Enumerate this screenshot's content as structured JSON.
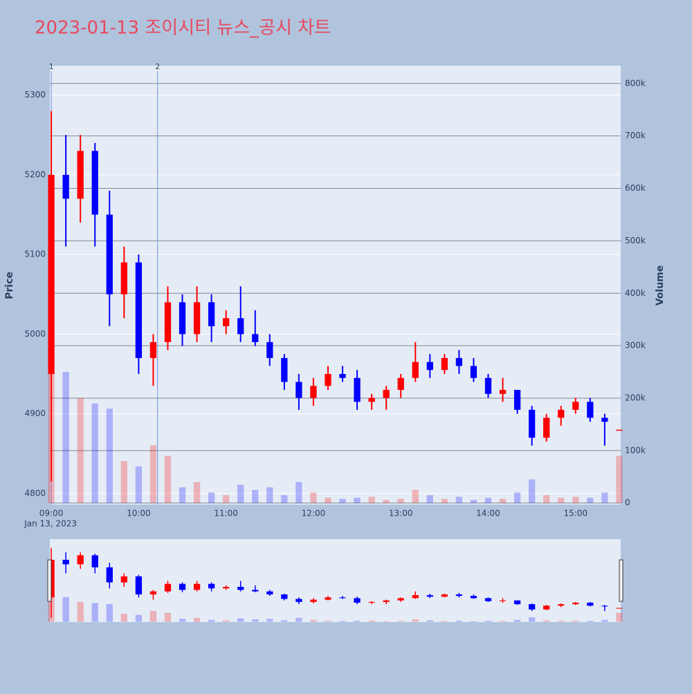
{
  "chart_data": {
    "type": "candlestick",
    "title": "2023-01-13 조이시티 뉴스_공시 차트",
    "x": [
      "09:00",
      "09:10",
      "09:20",
      "09:30",
      "09:40",
      "09:50",
      "10:00",
      "10:10",
      "10:20",
      "10:30",
      "10:40",
      "10:50",
      "11:00",
      "11:10",
      "11:20",
      "11:30",
      "11:40",
      "11:50",
      "12:00",
      "12:10",
      "12:20",
      "12:30",
      "12:40",
      "12:50",
      "13:00",
      "13:10",
      "13:20",
      "13:30",
      "13:40",
      "13:50",
      "14:00",
      "14:10",
      "14:20",
      "14:30",
      "14:40",
      "14:50",
      "15:00",
      "15:10",
      "15:20",
      "15:30"
    ],
    "open": [
      4950,
      5200,
      5170,
      5230,
      5150,
      5050,
      5090,
      4970,
      4990,
      5040,
      5000,
      5040,
      5010,
      5020,
      5000,
      4990,
      4970,
      4940,
      4920,
      4935,
      4950,
      4945,
      4915,
      4920,
      4930,
      4945,
      4965,
      4955,
      4970,
      4960,
      4945,
      4925,
      4930,
      4905,
      4870,
      4895,
      4905,
      4915,
      4895,
      4880
    ],
    "high": [
      5280,
      5250,
      5250,
      5240,
      5180,
      5110,
      5100,
      5000,
      5060,
      5050,
      5060,
      5050,
      5030,
      5060,
      5030,
      5000,
      4975,
      4950,
      4945,
      4960,
      4960,
      4955,
      4925,
      4935,
      4950,
      4990,
      4975,
      4975,
      4980,
      4970,
      4950,
      4945,
      4930,
      4910,
      4900,
      4910,
      4920,
      4920,
      4900,
      4880
    ],
    "low": [
      4815,
      5110,
      5140,
      5110,
      5010,
      5020,
      4950,
      4935,
      4980,
      4985,
      4990,
      4990,
      5000,
      4990,
      4985,
      4960,
      4930,
      4905,
      4910,
      4930,
      4940,
      4905,
      4905,
      4905,
      4920,
      4940,
      4945,
      4950,
      4950,
      4940,
      4920,
      4915,
      4900,
      4860,
      4865,
      4885,
      4900,
      4890,
      4860,
      4880
    ],
    "close": [
      5200,
      5170,
      5230,
      5150,
      5050,
      5090,
      4970,
      4990,
      5040,
      5000,
      5040,
      5010,
      5020,
      5000,
      4990,
      4970,
      4940,
      4920,
      4935,
      4950,
      4945,
      4915,
      4920,
      4930,
      4945,
      4965,
      4955,
      4970,
      4960,
      4945,
      4925,
      4930,
      4905,
      4870,
      4895,
      4905,
      4915,
      4895,
      4890,
      4880
    ],
    "volume": [
      420000,
      250000,
      200000,
      190000,
      180000,
      80000,
      70000,
      110000,
      90000,
      30000,
      40000,
      20000,
      15000,
      35000,
      25000,
      30000,
      15000,
      40000,
      20000,
      10000,
      8000,
      10000,
      12000,
      6000,
      8000,
      25000,
      15000,
      8000,
      12000,
      6000,
      10000,
      8000,
      20000,
      45000,
      15000,
      10000,
      12000,
      10000,
      20000,
      90000
    ],
    "increasing_color": "#ff0000",
    "decreasing_color": "#0000ff",
    "xlim": [
      "08:59",
      "15:31"
    ],
    "xticks": [
      "09:00",
      "10:00",
      "11:00",
      "12:00",
      "13:00",
      "14:00",
      "15:00"
    ],
    "x_date_label": "Jan 13, 2023",
    "ylabel": "Price",
    "ylim": [
      4786,
      5337
    ],
    "yticks": [
      4800,
      4900,
      5000,
      5100,
      5200,
      5300
    ],
    "y2label": "Volume",
    "y2lim": [
      -3000,
      834000
    ],
    "y2ticks": [
      0,
      {
        "value": 100000,
        "label": "100k"
      },
      {
        "value": 200000,
        "label": "200k"
      },
      {
        "value": 300000,
        "label": "300k"
      },
      {
        "value": 400000,
        "label": "400k"
      },
      {
        "value": 500000,
        "label": "500k"
      },
      {
        "value": 600000,
        "label": "600k"
      },
      {
        "value": 700000,
        "label": "700k"
      },
      {
        "value": 800000,
        "label": "800k"
      }
    ],
    "annotations": [
      {
        "x": "09:00",
        "text": "1"
      },
      {
        "x": "10:13",
        "text": "2"
      }
    ]
  }
}
